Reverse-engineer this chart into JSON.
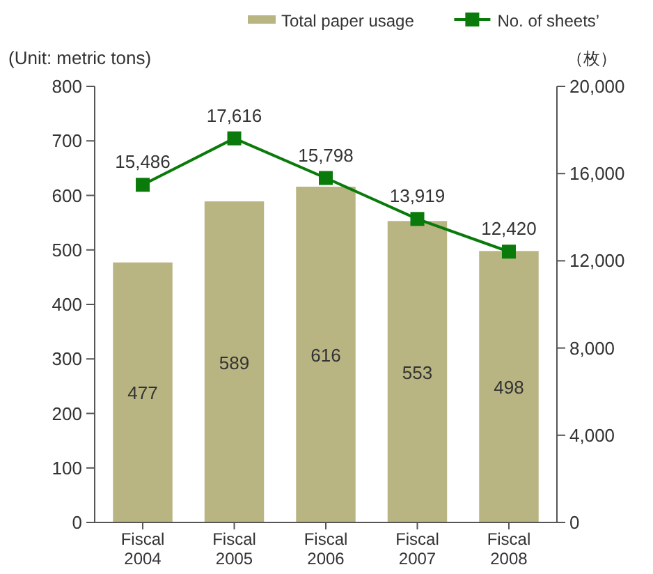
{
  "chart_data": {
    "type": "bar",
    "ylabel": "(Unit: metric tons)",
    "y2label": "（枚）",
    "categories": [
      "Fiscal 2004",
      "Fiscal 2005",
      "Fiscal 2006",
      "Fiscal 2007",
      "Fiscal 2008"
    ],
    "series": [
      {
        "name": "Total paper usage",
        "color": "#b9b582",
        "values": [
          477,
          589,
          616,
          553,
          498
        ]
      },
      {
        "name": "No. of sheets’",
        "type": "line",
        "axis": "y2",
        "color": "#0a7a0a",
        "values": [
          15486,
          17616,
          15798,
          13919,
          12420
        ],
        "value_labels": [
          "15,486",
          "17,616",
          "15,798",
          "13,919",
          "12,420"
        ]
      }
    ],
    "ylim": [
      0,
      800
    ],
    "yticks": [
      0,
      100,
      200,
      300,
      400,
      500,
      600,
      700,
      800
    ],
    "y2lim": [
      0,
      20000
    ],
    "y2ticks": [
      {
        "value": 0,
        "label": "0"
      },
      {
        "value": 4000,
        "label": "4,000"
      },
      {
        "value": 8000,
        "label": "8,000"
      },
      {
        "value": 12000,
        "label": "12,000"
      },
      {
        "value": 16000,
        "label": "16,000"
      },
      {
        "value": 20000,
        "label": "20,000"
      }
    ],
    "data_labels": true,
    "legend": "top right",
    "grid": false,
    "marker": "square",
    "line_style": "solid"
  }
}
